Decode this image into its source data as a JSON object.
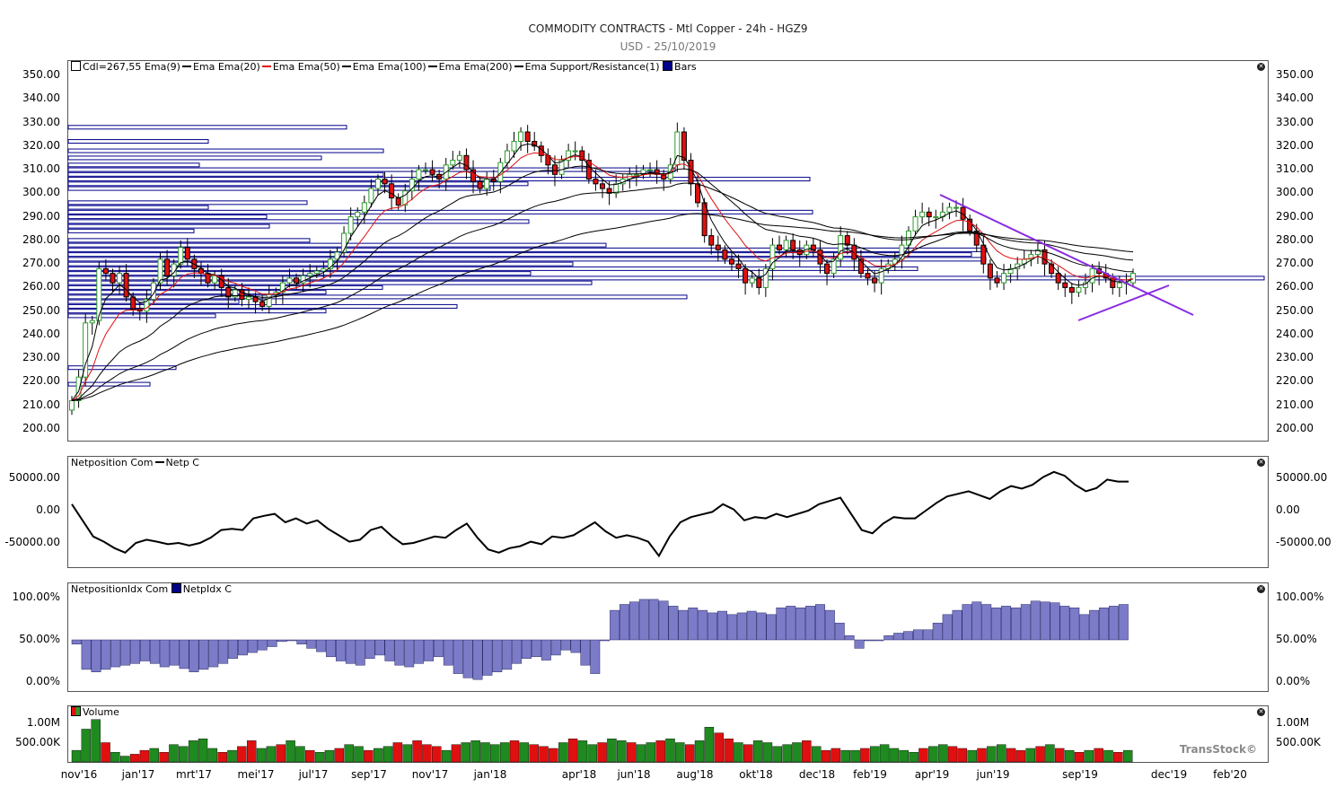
{
  "header": {
    "title": "COMMODITY CONTRACTS - Mtl Copper - 24h - HGZ9",
    "subtitle": "USD - 25/10/2019"
  },
  "legends": {
    "price": {
      "cdl": "Cdl=267,55",
      "items": [
        "Ema(9)",
        "Ema",
        "Ema(20)",
        "Ema",
        "Ema(50)",
        "Ema",
        "Ema(100)",
        "Ema",
        "Ema(200)",
        "Ema",
        "Support/Resistance(1)",
        "Bars"
      ]
    },
    "netposition": {
      "name": "Netposition Com",
      "item": "Netp C"
    },
    "netidx": {
      "name": "NetpositionIdx Com",
      "item": "NetpIdx C"
    },
    "volume": {
      "name": "Volume"
    }
  },
  "brand": "TransStock©",
  "axes": {
    "price_ticks": [
      "350.00",
      "340.00",
      "330.00",
      "320.00",
      "310.00",
      "300.00",
      "290.00",
      "280.00",
      "270.00",
      "260.00",
      "250.00",
      "240.00",
      "230.00",
      "220.00",
      "210.00",
      "200.00"
    ],
    "netp_ticks": [
      "50000.00",
      "0.00",
      "-50000.00"
    ],
    "idx_ticks": [
      "100.00%",
      "50.00%",
      "0.00%"
    ],
    "vol_ticks": [
      "1.00M",
      "500.00K"
    ],
    "x_ticks": [
      "nov'16",
      "jan'17",
      "mrt'17",
      "mei'17",
      "jul'17",
      "sep'17",
      "nov'17",
      "jan'18",
      "apr'18",
      "jun'18",
      "aug'18",
      "okt'18",
      "dec'18",
      "feb'19",
      "apr'19",
      "jun'19",
      "sep'19",
      "dec'19",
      "feb'20"
    ]
  },
  "colors": {
    "up": "#2e9a2e",
    "down": "#e01010",
    "trend": "#8a2be2",
    "bars": "#00008b",
    "idx": "#7b7bc8",
    "ema50": "#e01010"
  },
  "chart_data": [
    {
      "type": "candlestick",
      "title": "COMMODITY CONTRACTS - Mtl Copper - 24h - HGZ9",
      "subtitle": "USD - 25/10/2019",
      "ylim": [
        195,
        355
      ],
      "last_close": 267.55,
      "weekly_close": [
        212,
        222,
        245,
        246,
        268,
        266,
        262,
        266,
        256,
        251,
        250,
        255,
        262,
        272,
        265,
        270,
        277,
        272,
        268,
        266,
        262,
        265,
        260,
        256,
        259,
        255,
        256,
        254,
        252,
        257,
        258,
        262,
        264,
        262,
        265,
        266,
        267,
        268,
        272,
        275,
        283,
        290,
        292,
        296,
        302,
        306,
        304,
        298,
        295,
        301,
        306,
        310,
        310,
        308,
        306,
        312,
        314,
        316,
        310,
        305,
        302,
        306,
        305,
        313,
        318,
        322,
        326,
        322,
        320,
        316,
        312,
        308,
        314,
        318,
        318,
        314,
        306,
        304,
        302,
        300,
        304,
        306,
        308,
        308,
        310,
        310,
        308,
        306,
        312,
        326,
        314,
        304,
        296,
        282,
        278,
        276,
        272,
        270,
        268,
        262,
        264,
        260,
        268,
        278,
        276,
        280,
        276,
        274,
        278,
        276,
        270,
        266,
        272,
        282,
        278,
        272,
        266,
        264,
        262,
        268,
        270,
        272,
        278,
        284,
        290,
        292,
        290,
        290,
        292,
        294,
        294,
        289,
        284,
        278,
        270,
        264,
        262,
        266,
        268,
        270,
        272,
        274,
        276,
        270,
        266,
        262,
        260,
        258,
        260,
        262,
        268,
        266,
        264,
        260,
        262,
        262,
        266
      ]
    },
    {
      "type": "line",
      "series": [
        {
          "name": "Netp C",
          "values": [
            10000,
            -15000,
            -40000,
            -48000,
            -58000,
            -65000,
            -50000,
            -45000,
            -48000,
            -52000,
            -50000,
            -54000,
            -50000,
            -42000,
            -30000,
            -28000,
            -30000,
            -12000,
            -8000,
            -5000,
            -18000,
            -12000,
            -20000,
            -15000,
            -28000,
            -38000,
            -48000,
            -45000,
            -30000,
            -25000,
            -40000,
            -52000,
            -50000,
            -45000,
            -40000,
            -42000,
            -30000,
            -20000,
            -42000,
            -60000,
            -65000,
            -58000,
            -55000,
            -48000,
            -52000,
            -40000,
            -42000,
            -38000,
            -28000,
            -18000,
            -32000,
            -42000,
            -38000,
            -42000,
            -48000,
            -70000,
            -40000,
            -18000,
            -10000,
            -6000,
            -2000,
            10000,
            2000,
            -15000,
            -10000,
            -12000,
            -5000,
            -10000,
            -5000,
            0,
            10000,
            15000,
            20000,
            -5000,
            -30000,
            -35000,
            -20000,
            -10000,
            -12000,
            -12000,
            0,
            12000,
            22000,
            26000,
            30000,
            24000,
            18000,
            30000,
            38000,
            34000,
            40000,
            52000,
            60000,
            54000,
            40000,
            30000,
            35000,
            48000,
            45000,
            45000
          ]
        }
      ],
      "ylim": [
        -80000,
        80000
      ]
    },
    {
      "type": "bar",
      "series": [
        {
          "name": "NetpIdx C",
          "values": [
            45,
            15,
            12,
            15,
            18,
            20,
            22,
            25,
            22,
            18,
            20,
            16,
            12,
            15,
            18,
            22,
            28,
            32,
            35,
            38,
            42,
            48,
            50,
            45,
            40,
            36,
            30,
            25,
            22,
            20,
            28,
            32,
            25,
            20,
            18,
            22,
            25,
            30,
            20,
            10,
            5,
            3,
            8,
            12,
            15,
            22,
            28,
            30,
            26,
            32,
            38,
            35,
            20,
            10,
            50,
            85,
            92,
            95,
            98,
            98,
            96,
            90,
            85,
            88,
            85,
            82,
            84,
            80,
            82,
            84,
            82,
            80,
            88,
            90,
            88,
            90,
            92,
            85,
            70,
            55,
            40,
            50,
            50,
            55,
            58,
            60,
            62,
            62,
            70,
            80,
            85,
            92,
            95,
            92,
            88,
            90,
            88,
            92,
            96,
            95,
            94,
            90,
            88,
            80,
            85,
            88,
            90,
            92
          ]
        }
      ],
      "ylim": [
        0,
        100
      ]
    },
    {
      "type": "bar",
      "series": [
        {
          "name": "Volume",
          "values": [
            0.3,
            0.85,
            1.1,
            0.5,
            0.25,
            0.15,
            0.2,
            0.3,
            0.35,
            0.25,
            0.45,
            0.4,
            0.55,
            0.6,
            0.35,
            0.25,
            0.3,
            0.4,
            0.55,
            0.35,
            0.4,
            0.45,
            0.55,
            0.4,
            0.3,
            0.25,
            0.3,
            0.35,
            0.45,
            0.4,
            0.3,
            0.35,
            0.4,
            0.5,
            0.45,
            0.55,
            0.45,
            0.4,
            0.3,
            0.45,
            0.5,
            0.55,
            0.5,
            0.45,
            0.5,
            0.55,
            0.5,
            0.45,
            0.4,
            0.35,
            0.5,
            0.6,
            0.55,
            0.45,
            0.5,
            0.6,
            0.55,
            0.5,
            0.45,
            0.5,
            0.55,
            0.6,
            0.5,
            0.45,
            0.55,
            0.9,
            0.75,
            0.6,
            0.5,
            0.45,
            0.55,
            0.5,
            0.4,
            0.45,
            0.5,
            0.55,
            0.4,
            0.3,
            0.35,
            0.3,
            0.3,
            0.35,
            0.4,
            0.45,
            0.35,
            0.3,
            0.25,
            0.35,
            0.4,
            0.45,
            0.4,
            0.35,
            0.3,
            0.35,
            0.4,
            0.45,
            0.35,
            0.3,
            0.35,
            0.4,
            0.45,
            0.35,
            0.3,
            0.25,
            0.3,
            0.35,
            0.3,
            0.25,
            0.3
          ]
        }
      ],
      "ylim": [
        0,
        1.2
      ]
    }
  ]
}
